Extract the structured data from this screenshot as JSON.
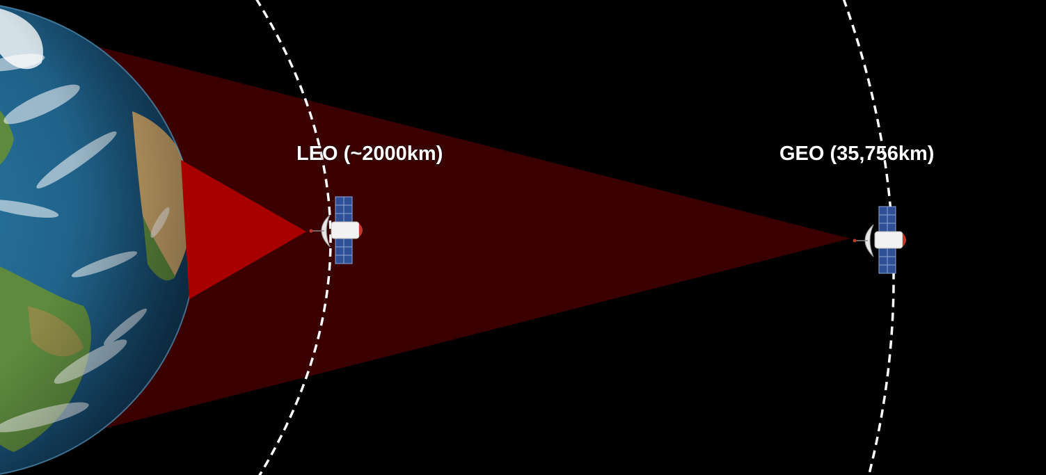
{
  "labels": {
    "leo": "LEO (~2000km)",
    "geo": "GEO (35,756km)"
  },
  "icons": {
    "planet": "earth-icon",
    "spacecraft": "satellite-icon"
  },
  "colors": {
    "background": "#000000",
    "leo_coverage": "#a80000",
    "geo_coverage": "#3a0000",
    "orbit_line": "#ffffff",
    "ocean": "#1f5f86",
    "land": "#5d8a3e",
    "desert": "#d2b07a",
    "solar_panel": "#2f4f97",
    "satellite_body": "#f2f2f2",
    "satellite_cap": "#c0392b"
  }
}
